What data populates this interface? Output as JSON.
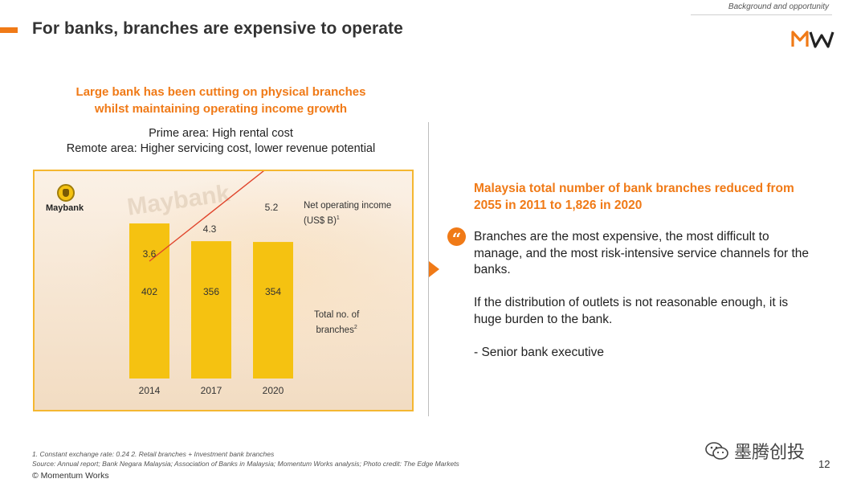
{
  "header": {
    "title": "For banks, branches are expensive to operate",
    "section": "Background and opportunity",
    "logo_text": "MW"
  },
  "left": {
    "headline_line1": "Large bank has been cutting on physical branches",
    "headline_line2": "whilst maintaining operating income growth",
    "sub_line1": "Prime area: High rental cost",
    "sub_line2": "Remote area: Higher servicing cost, lower revenue potential"
  },
  "chart_data": {
    "type": "bar",
    "categories": [
      "2014",
      "2017",
      "2020"
    ],
    "series": [
      {
        "name": "Total no. of branches",
        "values": [
          402,
          356,
          354
        ]
      },
      {
        "name": "Net operating income (US$ B)",
        "values": [
          3.6,
          4.3,
          5.2
        ],
        "render": "line"
      }
    ],
    "bar_labels": [
      "402",
      "356",
      "354"
    ],
    "line_labels": [
      "3.6",
      "4.3",
      "5.2"
    ],
    "legend_noi_line1": "Net operating income",
    "legend_noi_line2": "(US$ B)",
    "legend_noi_sup": "1",
    "legend_branches_line1": "Total no. of",
    "legend_branches_line2": "branches",
    "legend_branches_sup": "2",
    "brand": "Maybank",
    "bar_color": "#f5c211",
    "line_color": "#e0442b",
    "border_color": "#f5b731"
  },
  "right": {
    "headline_line1": "Malaysia total number of bank branches reduced from",
    "headline_line2": "2055 in 2011  to 1,826 in 2020",
    "quote_icon": "quote-icon",
    "para1": "Branches are the most expensive, the most difficult to manage, and the most risk-intensive service channels for the banks.",
    "para2": "If the distribution of outlets is not reasonable enough, it is huge burden to the bank.",
    "attribution": "-  Senior bank executive"
  },
  "footer": {
    "footnote_line1": "1.  Constant exchange rate: 0.24     2. Retail branches + Investment bank branches",
    "footnote_line2": "Source:  Annual report; Bank Negara Malaysia; Association of Banks in Malaysia; Momentum Works analysis; Photo credit: The Edge Markets",
    "copyright": "© Momentum Works",
    "watermark": "墨腾创投",
    "page_number": "12"
  },
  "colors": {
    "accent": "#f07a17"
  }
}
